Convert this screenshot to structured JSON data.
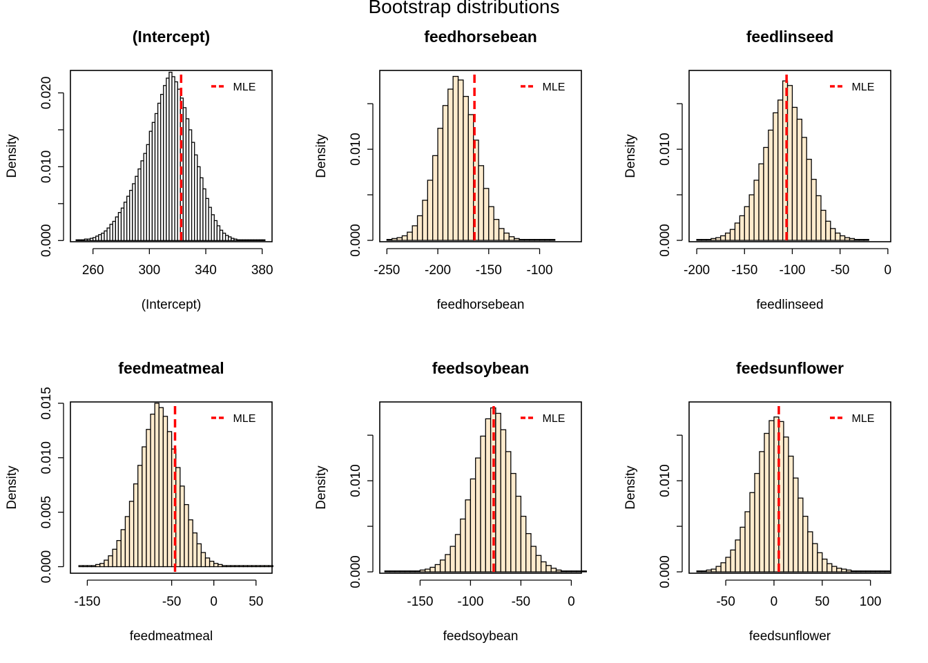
{
  "title": "Bootstrap distributions",
  "colors": {
    "fill": "#FFEBCD",
    "stroke": "#000000",
    "mle": "#FF0000"
  },
  "chart_data": [
    {
      "type": "histogram",
      "title": "(Intercept)",
      "xlabel": "(Intercept)",
      "ylabel": "Density",
      "xlim": [
        244,
        387
      ],
      "ylim": [
        -0.00016,
        0.02304
      ],
      "xticks": [
        260,
        300,
        340,
        380
      ],
      "yticks": [
        0.0,
        0.005,
        0.01,
        0.015,
        0.02
      ],
      "ytick_labels": [
        "0.000",
        "",
        "0.010",
        "",
        "0.020"
      ],
      "bin_start": 248,
      "bin_width": 2,
      "densities": [
        0.0001,
        0.0001,
        0.0001,
        0.0002,
        0.0002,
        0.0003,
        0.0004,
        0.0006,
        0.0008,
        0.001,
        0.0013,
        0.0017,
        0.0022,
        0.0026,
        0.0032,
        0.0038,
        0.0044,
        0.0052,
        0.006,
        0.0068,
        0.0077,
        0.0087,
        0.0097,
        0.0108,
        0.0118,
        0.013,
        0.0148,
        0.016,
        0.0172,
        0.0186,
        0.0198,
        0.021,
        0.022,
        0.0228,
        0.0222,
        0.0215,
        0.0205,
        0.0193,
        0.018,
        0.0165,
        0.015,
        0.0133,
        0.0116,
        0.01,
        0.0085,
        0.007,
        0.0057,
        0.0045,
        0.0035,
        0.0027,
        0.002,
        0.0014,
        0.001,
        0.0007,
        0.0005,
        0.0003,
        0.0002,
        0.0001,
        0.0001,
        0.0001,
        0.0001,
        0.0001,
        0.0001,
        0.0001,
        0.0001,
        0.0001,
        0.0001
      ],
      "mle": 322.5,
      "legend_label": "MLE",
      "legend_position": "topright",
      "shaded": true
    },
    {
      "type": "histogram",
      "title": "feedhorsebean",
      "xlabel": "feedhorsebean",
      "ylabel": "Density",
      "xlim": [
        -257,
        -59
      ],
      "ylim": [
        -0.00015,
        0.01865
      ],
      "xticks": [
        -250,
        -200,
        -150,
        -100
      ],
      "yticks": [
        0.0,
        0.005,
        0.01,
        0.015
      ],
      "ytick_labels": [
        "0.000",
        "",
        "0.010",
        ""
      ],
      "bin_start": -250,
      "bin_width": 5,
      "densities": [
        0.0001,
        0.0002,
        0.0003,
        0.0005,
        0.0009,
        0.0016,
        0.0027,
        0.0044,
        0.0066,
        0.0093,
        0.0123,
        0.0148,
        0.0166,
        0.018,
        0.0176,
        0.0158,
        0.0138,
        0.011,
        0.0082,
        0.0057,
        0.0037,
        0.0023,
        0.0013,
        0.0008,
        0.0004,
        0.0002,
        0.0001,
        0.0001,
        0.0001,
        0.0001,
        0.0001,
        0.0001,
        0.0001
      ],
      "mle": -164,
      "legend_label": "MLE",
      "legend_position": "topright"
    },
    {
      "type": "histogram",
      "title": "feedlinseed",
      "xlabel": "feedlinseed",
      "ylabel": "Density",
      "xlim": [
        -208,
        3
      ],
      "ylim": [
        -0.00015,
        0.01865
      ],
      "xticks": [
        -200,
        -150,
        -100,
        -50,
        0
      ],
      "yticks": [
        0.0,
        0.005,
        0.01,
        0.015
      ],
      "ytick_labels": [
        "0.000",
        "",
        "0.010",
        ""
      ],
      "bin_start": -200,
      "bin_width": 5,
      "densities": [
        0.0001,
        0.0001,
        0.0001,
        0.0002,
        0.0003,
        0.0005,
        0.0008,
        0.0012,
        0.0019,
        0.0027,
        0.0037,
        0.005,
        0.0066,
        0.0084,
        0.0102,
        0.0121,
        0.014,
        0.0154,
        0.0175,
        0.017,
        0.0146,
        0.0133,
        0.0113,
        0.0089,
        0.0067,
        0.0049,
        0.0033,
        0.0021,
        0.0013,
        0.0008,
        0.0005,
        0.0003,
        0.0002,
        0.0001,
        0.0001,
        0.0001
      ],
      "mle": -106,
      "legend_label": "MLE",
      "legend_position": "topright"
    },
    {
      "type": "histogram",
      "title": "feedmeatmeal",
      "xlabel": "feedmeatmeal",
      "ylabel": "Density",
      "xlim": [
        -170,
        69
      ],
      "ylim": [
        -0.0006,
        0.01512
      ],
      "xticks": [
        -150,
        -50,
        0,
        50
      ],
      "yticks": [
        0.0,
        0.005,
        0.01,
        0.015
      ],
      "ytick_labels": [
        "0.000",
        "0.005",
        "0.010",
        "0.015"
      ],
      "bin_start": -160,
      "bin_width": 5,
      "densities": [
        0.0001,
        0.0001,
        0.0001,
        0.0001,
        0.0002,
        0.0003,
        0.0006,
        0.001,
        0.0016,
        0.0024,
        0.0034,
        0.0046,
        0.006,
        0.0076,
        0.0093,
        0.011,
        0.0126,
        0.014,
        0.015,
        0.0146,
        0.0138,
        0.0124,
        0.0108,
        0.0091,
        0.0074,
        0.0057,
        0.0043,
        0.0031,
        0.0021,
        0.0013,
        0.0008,
        0.0005,
        0.0003,
        0.0002,
        0.0001,
        0.0001,
        0.0001,
        0.0001,
        0.0001,
        0.0001,
        0.0001,
        0.0001,
        0.0001,
        0.0001,
        0.0001,
        0.0001
      ],
      "mle": -46,
      "legend_label": "MLE",
      "legend_position": "topright"
    },
    {
      "type": "histogram",
      "title": "feedsoybean",
      "xlabel": "feedsoybean",
      "ylabel": "Density",
      "xlim": [
        -190,
        10
      ],
      "ylim": [
        -0.00015,
        0.01865
      ],
      "xticks": [
        -150,
        -100,
        -50,
        0
      ],
      "yticks": [
        0.0,
        0.005,
        0.01,
        0.015
      ],
      "ytick_labels": [
        "0.000",
        "",
        "0.010",
        ""
      ],
      "bin_start": -185,
      "bin_width": 5,
      "densities": [
        0.0001,
        0.0001,
        0.0001,
        0.0001,
        0.0001,
        0.0001,
        0.0001,
        0.0002,
        0.0003,
        0.0005,
        0.0008,
        0.0013,
        0.0019,
        0.0028,
        0.0041,
        0.0058,
        0.0079,
        0.0102,
        0.0125,
        0.0149,
        0.0168,
        0.018,
        0.0174,
        0.0156,
        0.0132,
        0.0108,
        0.0083,
        0.0061,
        0.0042,
        0.0028,
        0.0018,
        0.0011,
        0.0007,
        0.0004,
        0.0002,
        0.0001,
        0.0001,
        0.0001,
        0.0001,
        0.0001
      ],
      "mle": -77,
      "legend_label": "MLE",
      "legend_position": "topright"
    },
    {
      "type": "histogram",
      "title": "feedsunflower",
      "xlabel": "feedsunflower",
      "ylabel": "Density",
      "xlim": [
        -88,
        121
      ],
      "ylim": [
        -0.00015,
        0.01865
      ],
      "xticks": [
        -50,
        0,
        50,
        100
      ],
      "yticks": [
        0.0,
        0.005,
        0.01,
        0.015
      ],
      "ytick_labels": [
        "0.000",
        "",
        "0.010",
        ""
      ],
      "bin_start": -80,
      "bin_width": 5,
      "densities": [
        0.0001,
        0.0001,
        0.0002,
        0.0003,
        0.0006,
        0.001,
        0.0016,
        0.0024,
        0.0035,
        0.0049,
        0.0066,
        0.0087,
        0.0108,
        0.0132,
        0.0152,
        0.0166,
        0.017,
        0.0165,
        0.0148,
        0.0127,
        0.0103,
        0.0081,
        0.0061,
        0.0044,
        0.0031,
        0.0021,
        0.0014,
        0.0009,
        0.0006,
        0.0004,
        0.0003,
        0.0002,
        0.0001,
        0.0001,
        0.0001,
        0.0001,
        0.0001,
        0.0001,
        0.0001,
        0.0001
      ],
      "mle": 5,
      "legend_label": "MLE",
      "legend_position": "topright"
    }
  ]
}
